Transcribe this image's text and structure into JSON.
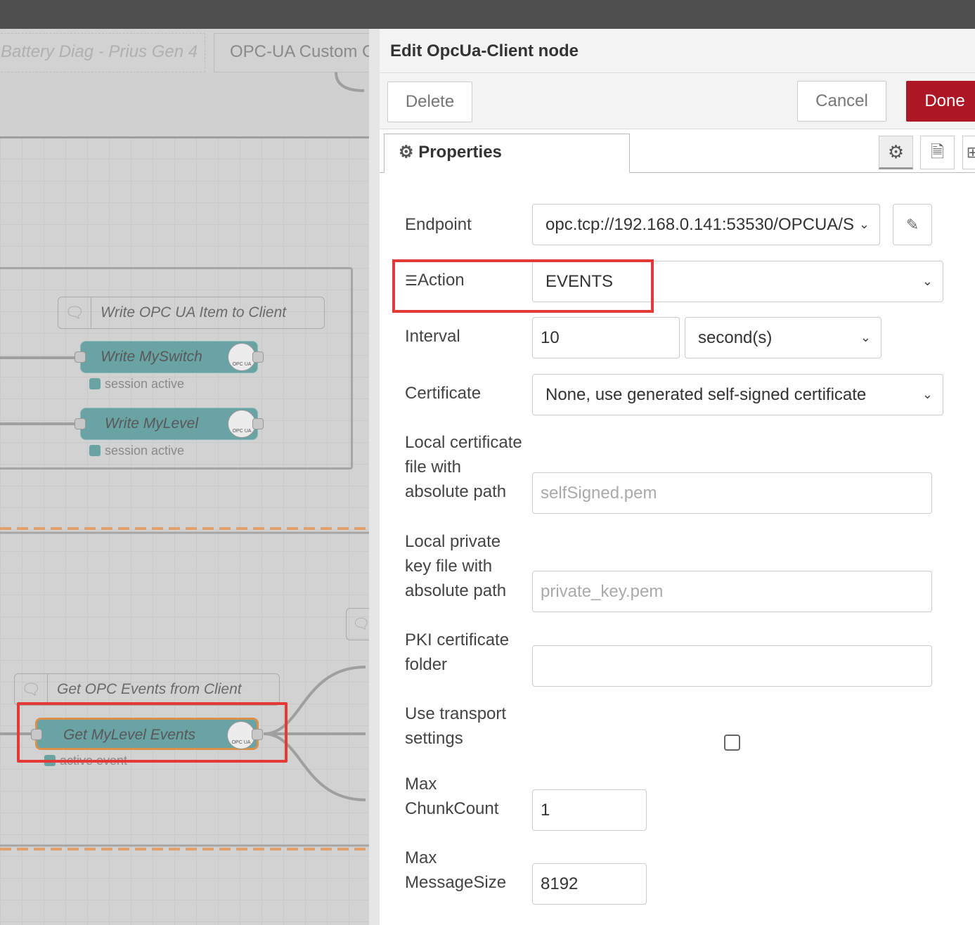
{
  "canvas": {
    "tabs": [
      "Battery Diag - Prius Gen 4",
      "OPC-UA Custom C"
    ],
    "comments": [
      "Write OPC UA Item to Client",
      "Get OPC Events from Client"
    ],
    "nodes": [
      {
        "label": "Write MySwitch",
        "status": "session active"
      },
      {
        "label": "Write MyLevel",
        "status": "session active"
      },
      {
        "label": "Get MyLevel Events",
        "status": "active event"
      }
    ],
    "node_icon_text": "OPC UA"
  },
  "panel": {
    "title": "Edit OpcUa-Client node",
    "delete": "Delete",
    "cancel": "Cancel",
    "done": "Done",
    "tab": "Properties",
    "colors": {
      "done": "#ad1625",
      "highlight": "#e53935",
      "node": "#6aa3a4"
    },
    "fields": {
      "endpoint": {
        "label": "Endpoint",
        "value": "opc.tcp://192.168.0.141:53530/OPCUA/S"
      },
      "action": {
        "label": "Action",
        "value": "EVENTS"
      },
      "interval": {
        "label": "Interval",
        "value": "10",
        "unit": "second(s)"
      },
      "certificate": {
        "label": "Certificate",
        "value": "None, use generated self-signed certificate"
      },
      "localcert": {
        "label": [
          "Local certificate",
          "file with",
          "absolute path"
        ],
        "placeholder": "selfSigned.pem"
      },
      "localkey": {
        "label": [
          "Local private",
          "key file with",
          "absolute path"
        ],
        "placeholder": "private_key.pem"
      },
      "pki": {
        "label": [
          "PKI certificate",
          "folder"
        ],
        "value": ""
      },
      "transport": {
        "label": [
          "Use transport",
          "settings"
        ],
        "checked": false
      },
      "chunk": {
        "label": [
          "Max",
          "ChunkCount"
        ],
        "value": "1"
      },
      "msgsize": {
        "label": [
          "Max",
          "MessageSize"
        ],
        "value": "8192"
      }
    }
  }
}
